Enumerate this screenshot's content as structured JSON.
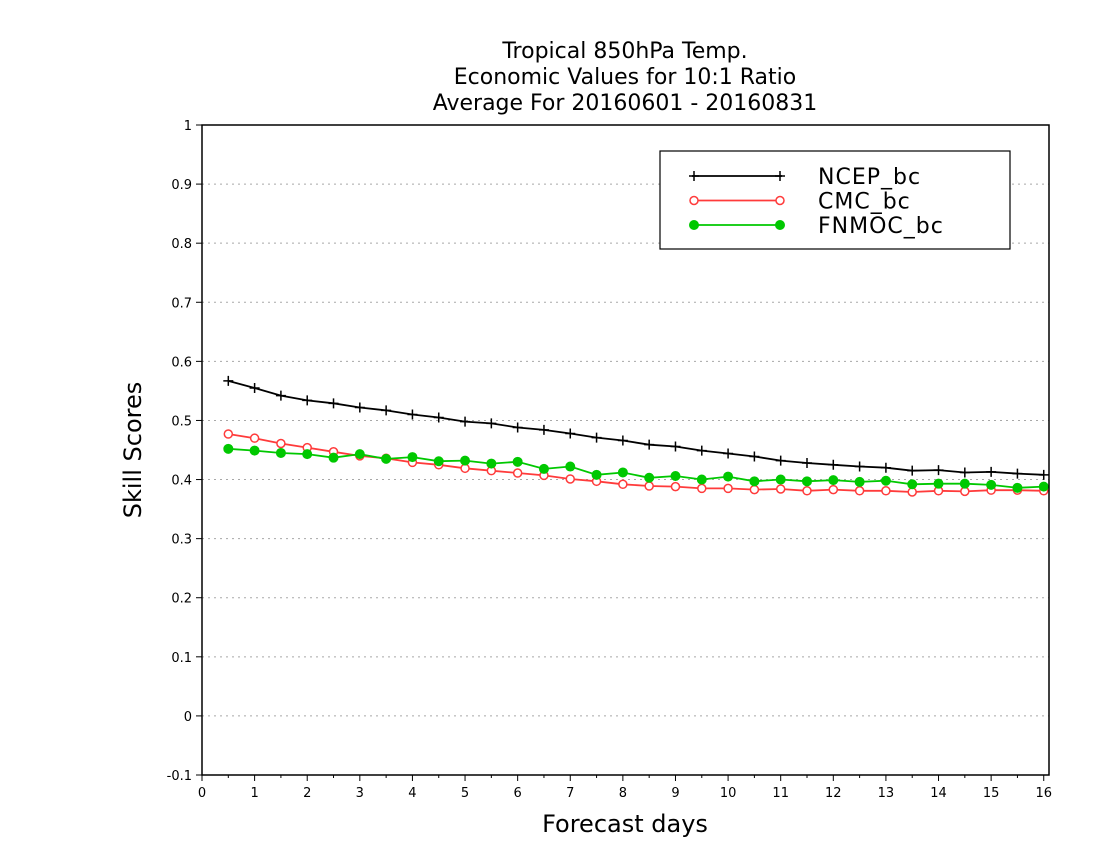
{
  "chart_data": {
    "type": "line",
    "title_lines": [
      "Tropical 850hPa Temp.",
      "Economic Values for 10:1 Ratio",
      "Average For 20160601 - 20160831"
    ],
    "xlabel": "Forecast days",
    "ylabel": "Skill Scores",
    "xlim": [
      0,
      16.1
    ],
    "ylim": [
      -0.1,
      1
    ],
    "xticks": [
      0,
      1,
      2,
      3,
      4,
      5,
      6,
      7,
      8,
      9,
      10,
      11,
      12,
      13,
      14,
      15,
      16
    ],
    "yticks": [
      -0.1,
      0,
      0.1,
      0.2,
      0.3,
      0.4,
      0.5,
      0.6,
      0.7,
      0.8,
      0.9,
      1
    ],
    "ytick_labels": [
      "-0.1",
      "0",
      "0.1",
      "0.2",
      "0.3",
      "0.4",
      "0.5",
      "0.6",
      "0.7",
      "0.8",
      "0.9",
      "1"
    ],
    "grid": "horizontal dotted",
    "legend_position": "top-right",
    "x": [
      0.5,
      1,
      1.5,
      2,
      2.5,
      3,
      3.5,
      4,
      4.5,
      5,
      5.5,
      6,
      6.5,
      7,
      7.5,
      8,
      8.5,
      9,
      9.5,
      10,
      10.5,
      11,
      11.5,
      12,
      12.5,
      13,
      13.5,
      14,
      14.5,
      15,
      15.5,
      16
    ],
    "series": [
      {
        "name": "NCEP_bc",
        "color": "#000000",
        "marker": "plus",
        "values": [
          0.567,
          0.555,
          0.542,
          0.534,
          0.529,
          0.522,
          0.517,
          0.51,
          0.505,
          0.498,
          0.495,
          0.488,
          0.484,
          0.478,
          0.471,
          0.466,
          0.459,
          0.456,
          0.449,
          0.444,
          0.439,
          0.432,
          0.428,
          0.425,
          0.422,
          0.42,
          0.415,
          0.416,
          0.412,
          0.413,
          0.41,
          0.408
        ]
      },
      {
        "name": "CMC_bc",
        "color": "#ff3b3b",
        "marker": "open-circle",
        "values": [
          0.477,
          0.47,
          0.461,
          0.454,
          0.447,
          0.44,
          0.436,
          0.429,
          0.425,
          0.419,
          0.415,
          0.411,
          0.407,
          0.401,
          0.397,
          0.392,
          0.389,
          0.388,
          0.385,
          0.385,
          0.383,
          0.384,
          0.381,
          0.383,
          0.381,
          0.381,
          0.379,
          0.381,
          0.38,
          0.382,
          0.382,
          0.381
        ]
      },
      {
        "name": "FNMOC_bc",
        "color": "#00c800",
        "marker": "filled-circle",
        "values": [
          0.452,
          0.449,
          0.445,
          0.443,
          0.437,
          0.443,
          0.435,
          0.438,
          0.431,
          0.432,
          0.427,
          0.43,
          0.418,
          0.422,
          0.408,
          0.412,
          0.403,
          0.406,
          0.4,
          0.405,
          0.397,
          0.4,
          0.397,
          0.399,
          0.396,
          0.398,
          0.392,
          0.393,
          0.393,
          0.391,
          0.386,
          0.388
        ]
      }
    ]
  }
}
